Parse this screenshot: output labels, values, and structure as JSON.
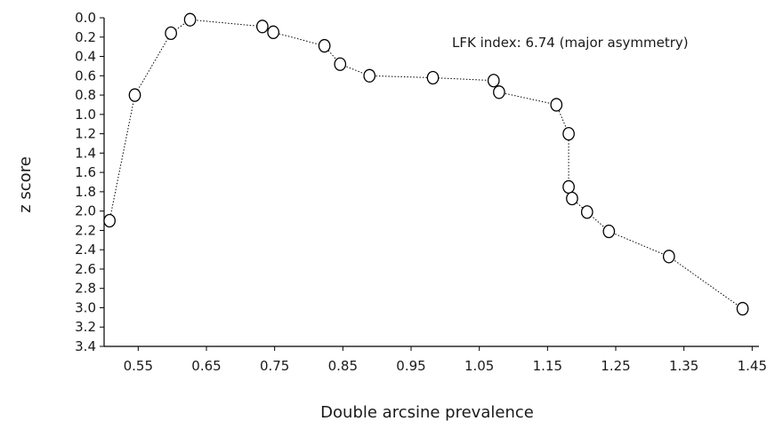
{
  "chart_data": {
    "type": "scatter",
    "title": "",
    "xlabel": "Double arcsine prevalence",
    "ylabel": "z score",
    "annotation": "LFK index: 6.74 (major asymmetry)",
    "xlim": [
      0.5,
      1.46
    ],
    "ylim": [
      0.0,
      3.4
    ],
    "y_inverted": true,
    "grid": false,
    "x_ticks": [
      "0.55",
      "0.65",
      "0.75",
      "0.85",
      "0.95",
      "1.05",
      "1.15",
      "1.25",
      "1.35",
      "1.45"
    ],
    "y_ticks": [
      "0.0",
      "0.2",
      "0.4",
      "0.6",
      "0.8",
      "1.0",
      "1.2",
      "1.4",
      "1.6",
      "1.8",
      "2.0",
      "2.2",
      "2.4",
      "2.6",
      "2.8",
      "3.0",
      "3.2",
      "3.4"
    ],
    "series": [
      {
        "marker": "open-circle",
        "line": "dotted",
        "x": [
          0.508,
          0.545,
          0.598,
          0.626,
          0.732,
          0.748,
          0.823,
          0.846,
          0.889,
          0.982,
          1.071,
          1.079,
          1.163,
          1.181,
          1.181,
          1.186,
          1.208,
          1.24,
          1.328,
          1.436
        ],
        "y": [
          2.1,
          0.8,
          0.16,
          0.02,
          0.09,
          0.15,
          0.29,
          0.48,
          0.6,
          0.62,
          0.65,
          0.77,
          0.9,
          1.2,
          1.75,
          1.87,
          2.01,
          2.21,
          2.47,
          3.01
        ]
      }
    ]
  }
}
